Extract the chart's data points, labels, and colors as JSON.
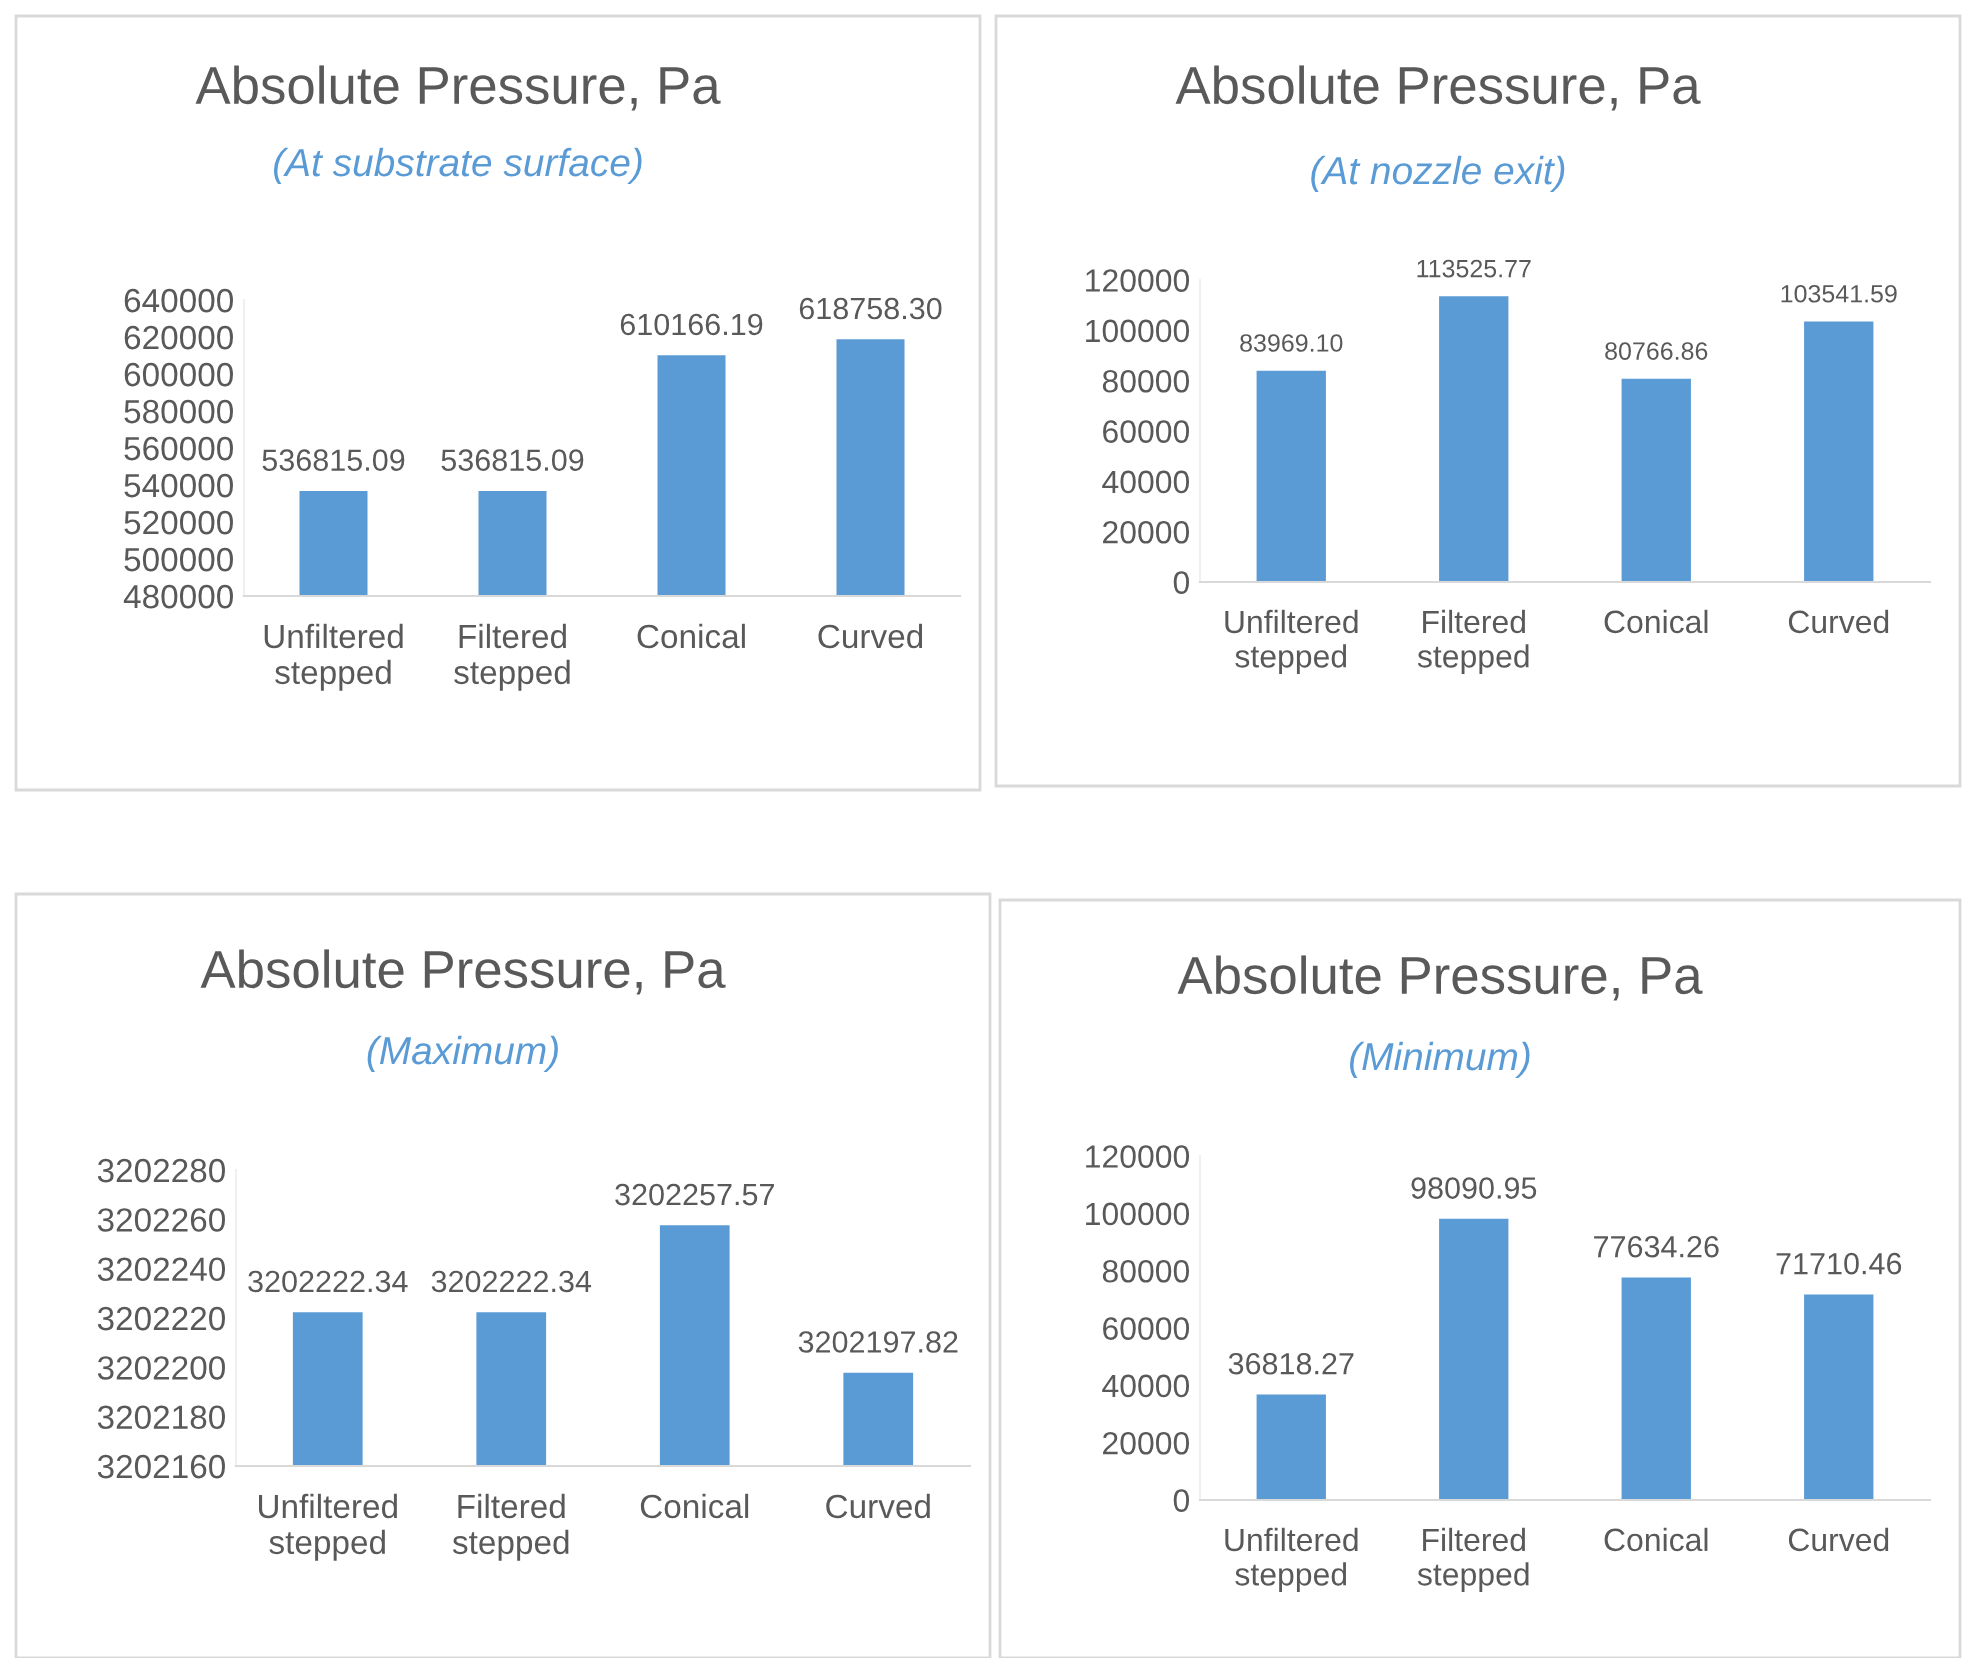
{
  "chart_data": [
    {
      "type": "bar",
      "title": "Absolute Pressure, Pa",
      "subtitle": "(At substrate surface)",
      "categories": [
        "Unfiltered stepped",
        "Filtered stepped",
        "Conical",
        "Curved"
      ],
      "values": [
        536815.09,
        536815.09,
        610166.19,
        618758.3
      ],
      "color": "#5b9bd5",
      "value_labels": [
        "536815.09",
        "536815.09",
        "610166.19",
        "618758.30"
      ],
      "ylim": [
        480000,
        640000
      ],
      "yticks": [
        480000,
        500000,
        520000,
        540000,
        560000,
        580000,
        600000,
        620000,
        640000
      ],
      "grid": false,
      "legend": false
    },
    {
      "type": "bar",
      "title": "Absolute Pressure, Pa",
      "subtitle": "(At nozzle exit)",
      "categories": [
        "Unfiltered stepped",
        "Filtered stepped",
        "Conical",
        "Curved"
      ],
      "values": [
        83969.1,
        113525.77,
        80766.86,
        103541.59
      ],
      "color": "#5b9bd5",
      "value_labels": [
        "83969.10",
        "113525.77",
        "80766.86",
        "103541.59"
      ],
      "ylim": [
        0,
        120000
      ],
      "yticks": [
        0,
        20000,
        40000,
        60000,
        80000,
        100000,
        120000
      ],
      "grid": false,
      "legend": false
    },
    {
      "type": "bar",
      "title": "Absolute Pressure, Pa",
      "subtitle": "(Maximum)",
      "categories": [
        "Unfiltered stepped",
        "Filtered stepped",
        "Conical",
        "Curved"
      ],
      "values": [
        3202222.34,
        3202222.34,
        3202257.57,
        3202197.82
      ],
      "color": "#5b9bd5",
      "value_labels": [
        "3202222.34",
        "3202222.34",
        "3202257.57",
        "3202197.82"
      ],
      "ylim": [
        3202160,
        3202280
      ],
      "yticks": [
        3202160,
        3202180,
        3202200,
        3202220,
        3202240,
        3202260,
        3202280
      ],
      "grid": false,
      "legend": false
    },
    {
      "type": "bar",
      "title": "Absolute Pressure, Pa",
      "subtitle": "(Minimum)",
      "categories": [
        "Unfiltered stepped",
        "Filtered stepped",
        "Conical",
        "Curved"
      ],
      "values": [
        36818.27,
        98090.95,
        77634.26,
        71710.46
      ],
      "color": "#5b9bd5",
      "value_labels": [
        "36818.27",
        "98090.95",
        "77634.26",
        "71710.46"
      ],
      "ylim": [
        0,
        120000
      ],
      "yticks": [
        0,
        20000,
        40000,
        60000,
        80000,
        100000,
        120000
      ],
      "grid": false,
      "legend": false
    }
  ]
}
